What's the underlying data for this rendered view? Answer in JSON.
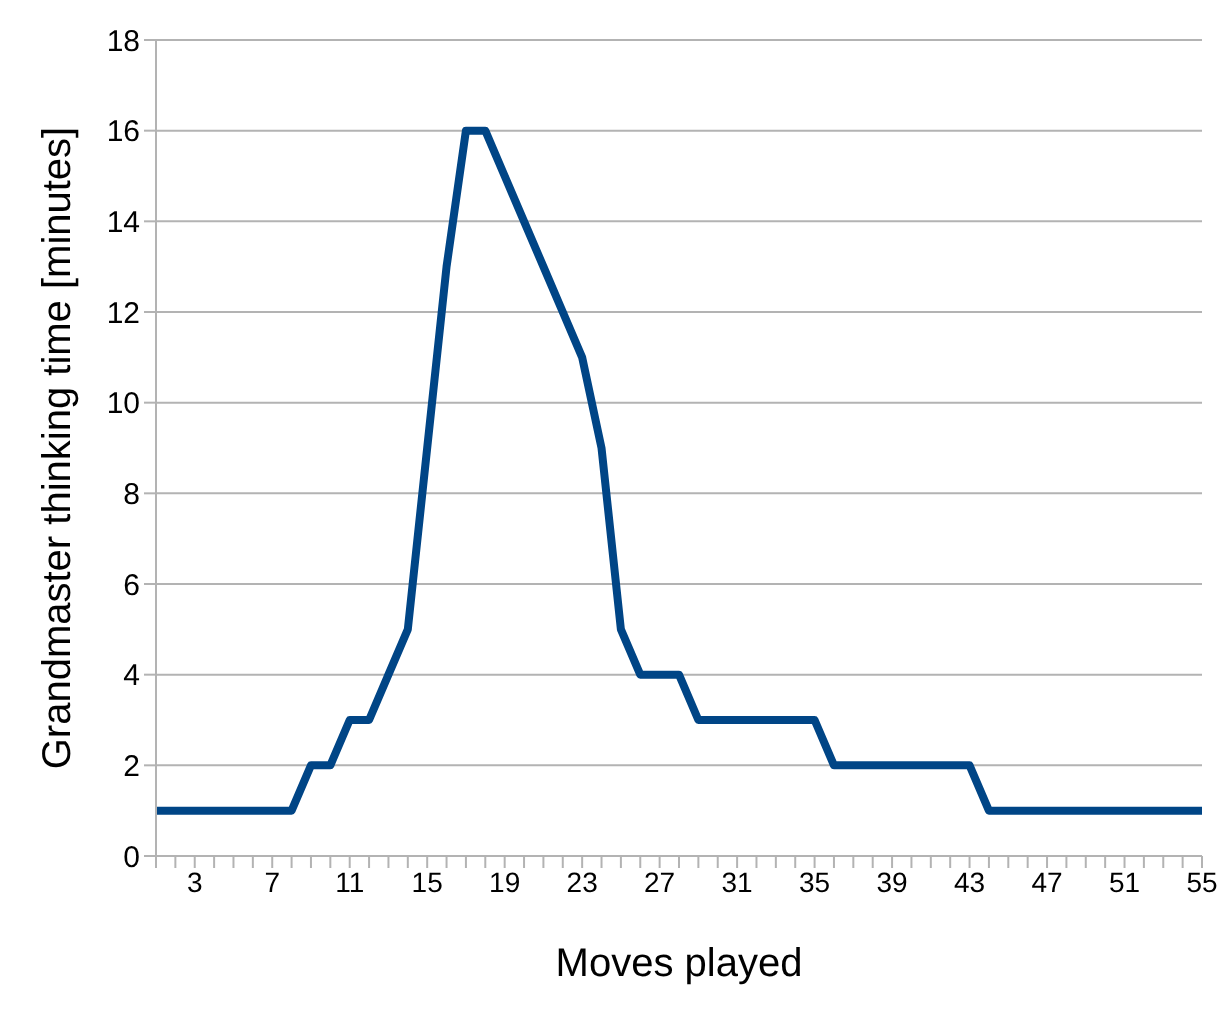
{
  "chart_data": {
    "type": "line",
    "xlabel": "Moves played",
    "ylabel": "Grandmaster thinking time [minutes]",
    "categories": [
      null,
      null,
      "3",
      null,
      null,
      null,
      "7",
      null,
      null,
      null,
      "11",
      null,
      null,
      null,
      "15",
      null,
      null,
      null,
      "19",
      null,
      null,
      null,
      "23",
      null,
      null,
      null,
      "27",
      null,
      null,
      null,
      "31",
      null,
      null,
      null,
      "35",
      null,
      null,
      null,
      "39",
      null,
      null,
      null,
      "43",
      null,
      null,
      null,
      "47",
      null,
      null,
      null,
      "51",
      null,
      null,
      null,
      "55"
    ],
    "series": [
      {
        "color": "#004586",
        "values": [
          1,
          1,
          1,
          1,
          1,
          1,
          1,
          1,
          2,
          2,
          3,
          3,
          4,
          5,
          9,
          13,
          16,
          16,
          15,
          14,
          13,
          12,
          11,
          9,
          5,
          4,
          4,
          4,
          3,
          3,
          3,
          3,
          3,
          3,
          3,
          2,
          2,
          2,
          2,
          2,
          2,
          2,
          2,
          1,
          1,
          1,
          1,
          1,
          1,
          1,
          1,
          1,
          1,
          1,
          1
        ]
      }
    ],
    "ylim": [
      0,
      18
    ],
    "yticks": [
      0,
      2,
      4,
      6,
      8,
      10,
      12,
      14,
      16,
      18
    ],
    "grid": "y",
    "marker": "none",
    "line_style": "solid"
  }
}
